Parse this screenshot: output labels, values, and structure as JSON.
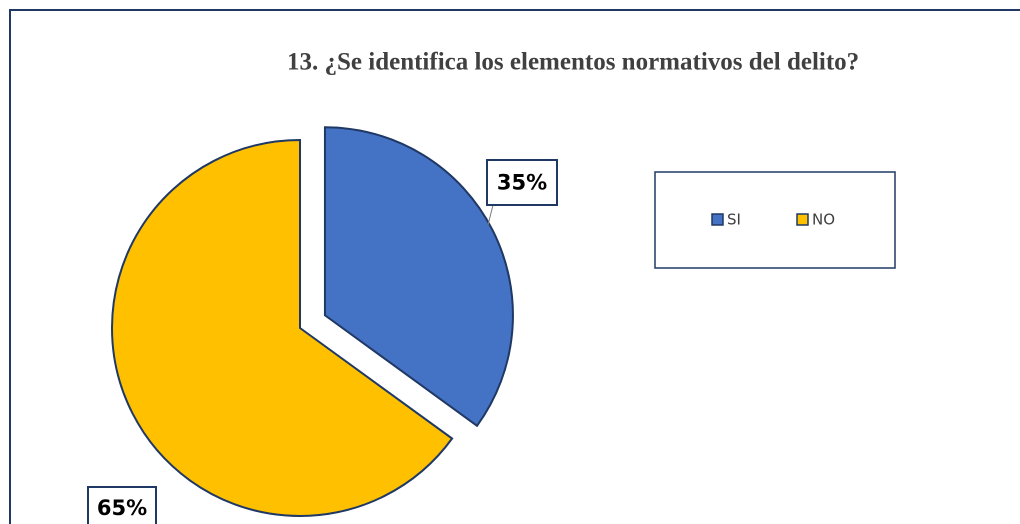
{
  "chart_data": {
    "type": "pie",
    "title": "13.  ¿Se identifica los elementos normativos del delito?",
    "categories": [
      "SI",
      "NO"
    ],
    "values": [
      35,
      65
    ],
    "value_labels": [
      "35%",
      "65%"
    ],
    "colors": [
      "#4472c4",
      "#ffc000"
    ],
    "legend": "top-right"
  }
}
